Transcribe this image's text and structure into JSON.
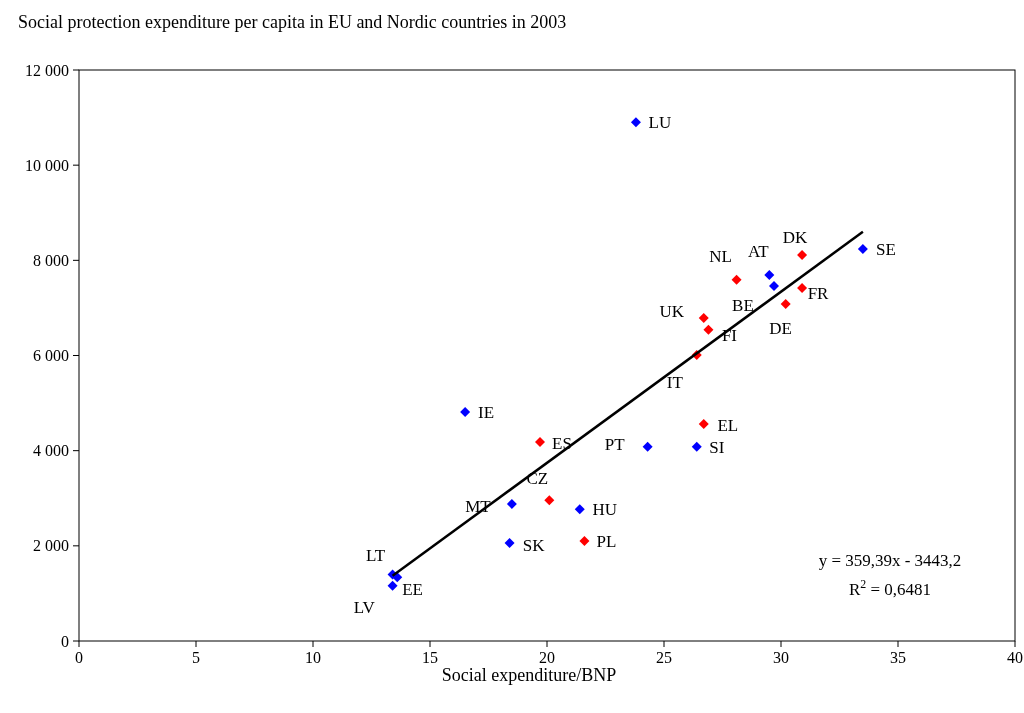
{
  "chart_data": {
    "type": "scatter",
    "title": "Social protection expenditure per capita in EU and Nordic countries in 2003",
    "xlabel": "Social expenditure/BNP",
    "xlim": [
      0,
      40
    ],
    "xticks": [
      0,
      5,
      10,
      15,
      20,
      25,
      30,
      35,
      40
    ],
    "ylim": [
      0,
      12000
    ],
    "yticks": [
      {
        "value": 0,
        "label": "0"
      },
      {
        "value": 2000,
        "label": "2 000"
      },
      {
        "value": 4000,
        "label": "4 000"
      },
      {
        "value": 6000,
        "label": "6 000"
      },
      {
        "value": 8000,
        "label": "8 000"
      },
      {
        "value": 10000,
        "label": "10 000"
      },
      {
        "value": 12000,
        "label": "12 000"
      }
    ],
    "grid": false,
    "marker": "diamond",
    "series": [
      {
        "color": "#0000ff",
        "x": [
          23.8,
          33.5,
          29.5,
          29.7,
          16.5,
          24.3,
          26.4,
          18.5,
          21.4,
          18.4,
          13.4,
          13.4,
          13.6
        ],
        "values": [
          10900,
          8240,
          7690,
          7460,
          4810,
          4080,
          4080,
          2880,
          2770,
          2060,
          1400,
          1160,
          1340
        ]
      },
      {
        "color": "#ff0000",
        "x": [
          30.9,
          28.1,
          30.9,
          30.2,
          26.7,
          26.9,
          26.4,
          26.7,
          19.7,
          20.1,
          21.6
        ],
        "values": [
          8110,
          7590,
          7420,
          7080,
          6790,
          6540,
          6010,
          4560,
          4180,
          2960,
          2100
        ]
      },
      {
        "type": "line",
        "color": "#000000",
        "x": [
          13.4,
          33.5
        ],
        "values": [
          1370,
          8600
        ],
        "line_style": "solid",
        "marker": "none"
      }
    ],
    "annotations": [
      {
        "text": "LU",
        "x": 23.8,
        "y": 10900
      },
      {
        "text": "SE",
        "x": 33.5,
        "y": 8240
      },
      {
        "text": "AT",
        "x": 29.5,
        "y": 7690
      },
      {
        "text": "BE",
        "x": 29.7,
        "y": 7460
      },
      {
        "text": "IE",
        "x": 16.5,
        "y": 4810
      },
      {
        "text": "PT",
        "x": 24.3,
        "y": 4080
      },
      {
        "text": "SI",
        "x": 26.4,
        "y": 4080
      },
      {
        "text": "MT",
        "x": 18.5,
        "y": 2880
      },
      {
        "text": "HU",
        "x": 21.4,
        "y": 2770
      },
      {
        "text": "SK",
        "x": 18.4,
        "y": 2060
      },
      {
        "text": "LT",
        "x": 13.4,
        "y": 1400
      },
      {
        "text": "EE",
        "x": 13.4,
        "y": 1160
      },
      {
        "text": "LV",
        "x": 13.6,
        "y": 1340
      },
      {
        "text": "DK",
        "x": 30.9,
        "y": 8110
      },
      {
        "text": "NL",
        "x": 28.1,
        "y": 7590
      },
      {
        "text": "FR",
        "x": 30.9,
        "y": 7420
      },
      {
        "text": "DE",
        "x": 30.2,
        "y": 7080
      },
      {
        "text": "UK",
        "x": 26.7,
        "y": 6790
      },
      {
        "text": "FI",
        "x": 26.9,
        "y": 6540
      },
      {
        "text": "IT",
        "x": 26.4,
        "y": 6010
      },
      {
        "text": "EL",
        "x": 26.7,
        "y": 4560
      },
      {
        "text": "ES",
        "x": 19.7,
        "y": 4180
      },
      {
        "text": "CZ",
        "x": 20.1,
        "y": 2960
      },
      {
        "text": "PL",
        "x": 21.6,
        "y": 2100
      },
      "y = 359,39x - 3443,2",
      "R$^{2}$ = 0,6481"
    ]
  }
}
